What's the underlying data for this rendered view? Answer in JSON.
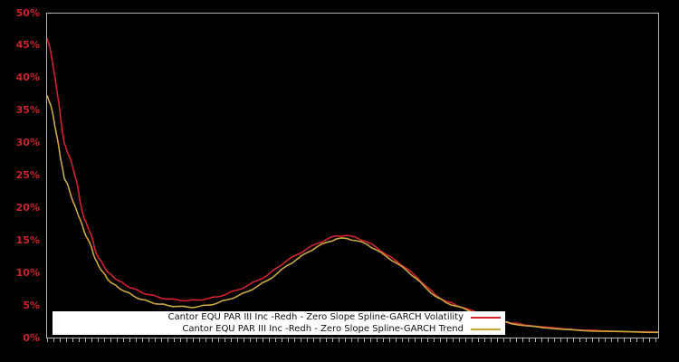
{
  "chart_data": {
    "type": "line",
    "title": "",
    "xlabel": "",
    "ylabel": "",
    "ylim": [
      0,
      50
    ],
    "y_tick_labels": [
      "50%",
      "45%",
      "40%",
      "35%",
      "30%",
      "25%",
      "20%",
      "15%",
      "10%",
      "5%",
      "0%"
    ],
    "x_tick_labels": [],
    "grid": false,
    "background_color": "#000000",
    "axis_frame_color": "#b3b3b3",
    "tick_label_color": "#d0202a",
    "legend_position": "bottom-inside",
    "legend_background": "#ffffff",
    "series": [
      {
        "name": "Cantor EQU PAR III Inc -Redh - Zero Slope Spline-GARCH Volatility",
        "color": "#d2222d",
        "points": [
          [
            0.0,
            46.2
          ],
          [
            0.0059,
            44.2
          ],
          [
            0.0103,
            41.6
          ],
          [
            0.0148,
            38.9
          ],
          [
            0.0192,
            36.2
          ],
          [
            0.0236,
            32.8
          ],
          [
            0.0281,
            30.0
          ],
          [
            0.0325,
            28.8
          ],
          [
            0.0369,
            27.9
          ],
          [
            0.0428,
            26.0
          ],
          [
            0.0487,
            24.0
          ],
          [
            0.0547,
            20.6
          ],
          [
            0.0606,
            18.4
          ],
          [
            0.0665,
            17.1
          ],
          [
            0.0724,
            15.8
          ],
          [
            0.0783,
            13.6
          ],
          [
            0.0842,
            12.3
          ],
          [
            0.0916,
            11.3
          ],
          [
            0.099,
            10.1
          ],
          [
            0.1078,
            9.4
          ],
          [
            0.1167,
            8.8
          ],
          [
            0.1285,
            8.1
          ],
          [
            0.1403,
            7.6
          ],
          [
            0.1536,
            7.0
          ],
          [
            0.1684,
            6.6
          ],
          [
            0.1832,
            6.2
          ],
          [
            0.1979,
            5.95
          ],
          [
            0.2142,
            5.8
          ],
          [
            0.2304,
            5.7
          ],
          [
            0.2467,
            5.78
          ],
          [
            0.2629,
            6.0
          ],
          [
            0.2792,
            6.3
          ],
          [
            0.2954,
            6.8
          ],
          [
            0.3117,
            7.35
          ],
          [
            0.3279,
            8.0
          ],
          [
            0.3442,
            8.8
          ],
          [
            0.3604,
            9.6
          ],
          [
            0.3767,
            10.8
          ],
          [
            0.3929,
            11.9
          ],
          [
            0.4092,
            12.8
          ],
          [
            0.4254,
            13.7
          ],
          [
            0.4417,
            14.5
          ],
          [
            0.4579,
            15.2
          ],
          [
            0.4742,
            15.7
          ],
          [
            0.4904,
            15.75
          ],
          [
            0.5067,
            15.4
          ],
          [
            0.5229,
            14.8
          ],
          [
            0.5392,
            13.9
          ],
          [
            0.5554,
            12.8
          ],
          [
            0.5717,
            11.8
          ],
          [
            0.5879,
            10.7
          ],
          [
            0.6042,
            9.4
          ],
          [
            0.6204,
            7.9
          ],
          [
            0.6367,
            6.5
          ],
          [
            0.6529,
            5.6
          ],
          [
            0.6692,
            5.0
          ],
          [
            0.6854,
            4.5
          ],
          [
            0.7076,
            3.6
          ],
          [
            0.7297,
            2.9
          ],
          [
            0.7475,
            2.5
          ],
          [
            0.7593,
            2.25
          ],
          [
            0.7814,
            1.95
          ],
          [
            0.8109,
            1.65
          ],
          [
            0.8405,
            1.4
          ],
          [
            0.8774,
            1.15
          ],
          [
            0.9143,
            1.0
          ],
          [
            0.9586,
            0.9
          ],
          [
            1.0,
            0.85
          ]
        ]
      },
      {
        "name": "Cantor EQU PAR III Inc -Redh - Zero Slope Spline-GARCH Trend",
        "color": "#c9a83e",
        "points": [
          [
            0.0,
            37.4
          ],
          [
            0.0059,
            35.9
          ],
          [
            0.0103,
            34.0
          ],
          [
            0.0148,
            31.6
          ],
          [
            0.0192,
            29.4
          ],
          [
            0.0236,
            26.9
          ],
          [
            0.0281,
            24.6
          ],
          [
            0.0325,
            23.9
          ],
          [
            0.0369,
            22.6
          ],
          [
            0.0428,
            20.9
          ],
          [
            0.0487,
            19.5
          ],
          [
            0.0547,
            18.1
          ],
          [
            0.0606,
            16.4
          ],
          [
            0.0665,
            15.2
          ],
          [
            0.0724,
            14.0
          ],
          [
            0.0783,
            12.2
          ],
          [
            0.0842,
            11.1
          ],
          [
            0.0916,
            10.1
          ],
          [
            0.099,
            9.0
          ],
          [
            0.1078,
            8.3
          ],
          [
            0.1167,
            7.7
          ],
          [
            0.1285,
            7.1
          ],
          [
            0.1403,
            6.5
          ],
          [
            0.1536,
            5.9
          ],
          [
            0.1684,
            5.5
          ],
          [
            0.1832,
            5.15
          ],
          [
            0.1979,
            4.95
          ],
          [
            0.2142,
            4.8
          ],
          [
            0.2304,
            4.7
          ],
          [
            0.2467,
            4.75
          ],
          [
            0.2629,
            5.0
          ],
          [
            0.2792,
            5.35
          ],
          [
            0.2954,
            5.85
          ],
          [
            0.3117,
            6.4
          ],
          [
            0.3279,
            7.1
          ],
          [
            0.3442,
            7.9
          ],
          [
            0.3604,
            8.8
          ],
          [
            0.3767,
            9.9
          ],
          [
            0.3929,
            11.1
          ],
          [
            0.4092,
            12.1
          ],
          [
            0.4254,
            13.1
          ],
          [
            0.4417,
            14.0
          ],
          [
            0.4579,
            14.7
          ],
          [
            0.4742,
            15.25
          ],
          [
            0.4904,
            15.3
          ],
          [
            0.5067,
            14.95
          ],
          [
            0.5229,
            14.4
          ],
          [
            0.5392,
            13.5
          ],
          [
            0.5554,
            12.5
          ],
          [
            0.5717,
            11.5
          ],
          [
            0.5879,
            10.4
          ],
          [
            0.6042,
            9.1
          ],
          [
            0.6204,
            7.6
          ],
          [
            0.6367,
            6.3
          ],
          [
            0.6529,
            5.4
          ],
          [
            0.6692,
            4.85
          ],
          [
            0.6854,
            4.35
          ],
          [
            0.7076,
            3.5
          ],
          [
            0.7297,
            2.8
          ],
          [
            0.7475,
            2.45
          ],
          [
            0.7593,
            2.15
          ],
          [
            0.7814,
            1.85
          ],
          [
            0.8109,
            1.55
          ],
          [
            0.8405,
            1.3
          ],
          [
            0.8774,
            1.08
          ],
          [
            0.9143,
            0.97
          ],
          [
            0.9586,
            0.88
          ],
          [
            1.0,
            0.8
          ]
        ]
      }
    ]
  },
  "legend": {
    "items": [
      {
        "label": "Cantor EQU PAR III Inc -Redh - Zero Slope Spline-GARCH Volatility"
      },
      {
        "label": "Cantor EQU PAR III Inc -Redh - Zero Slope Spline-GARCH Trend"
      }
    ]
  }
}
